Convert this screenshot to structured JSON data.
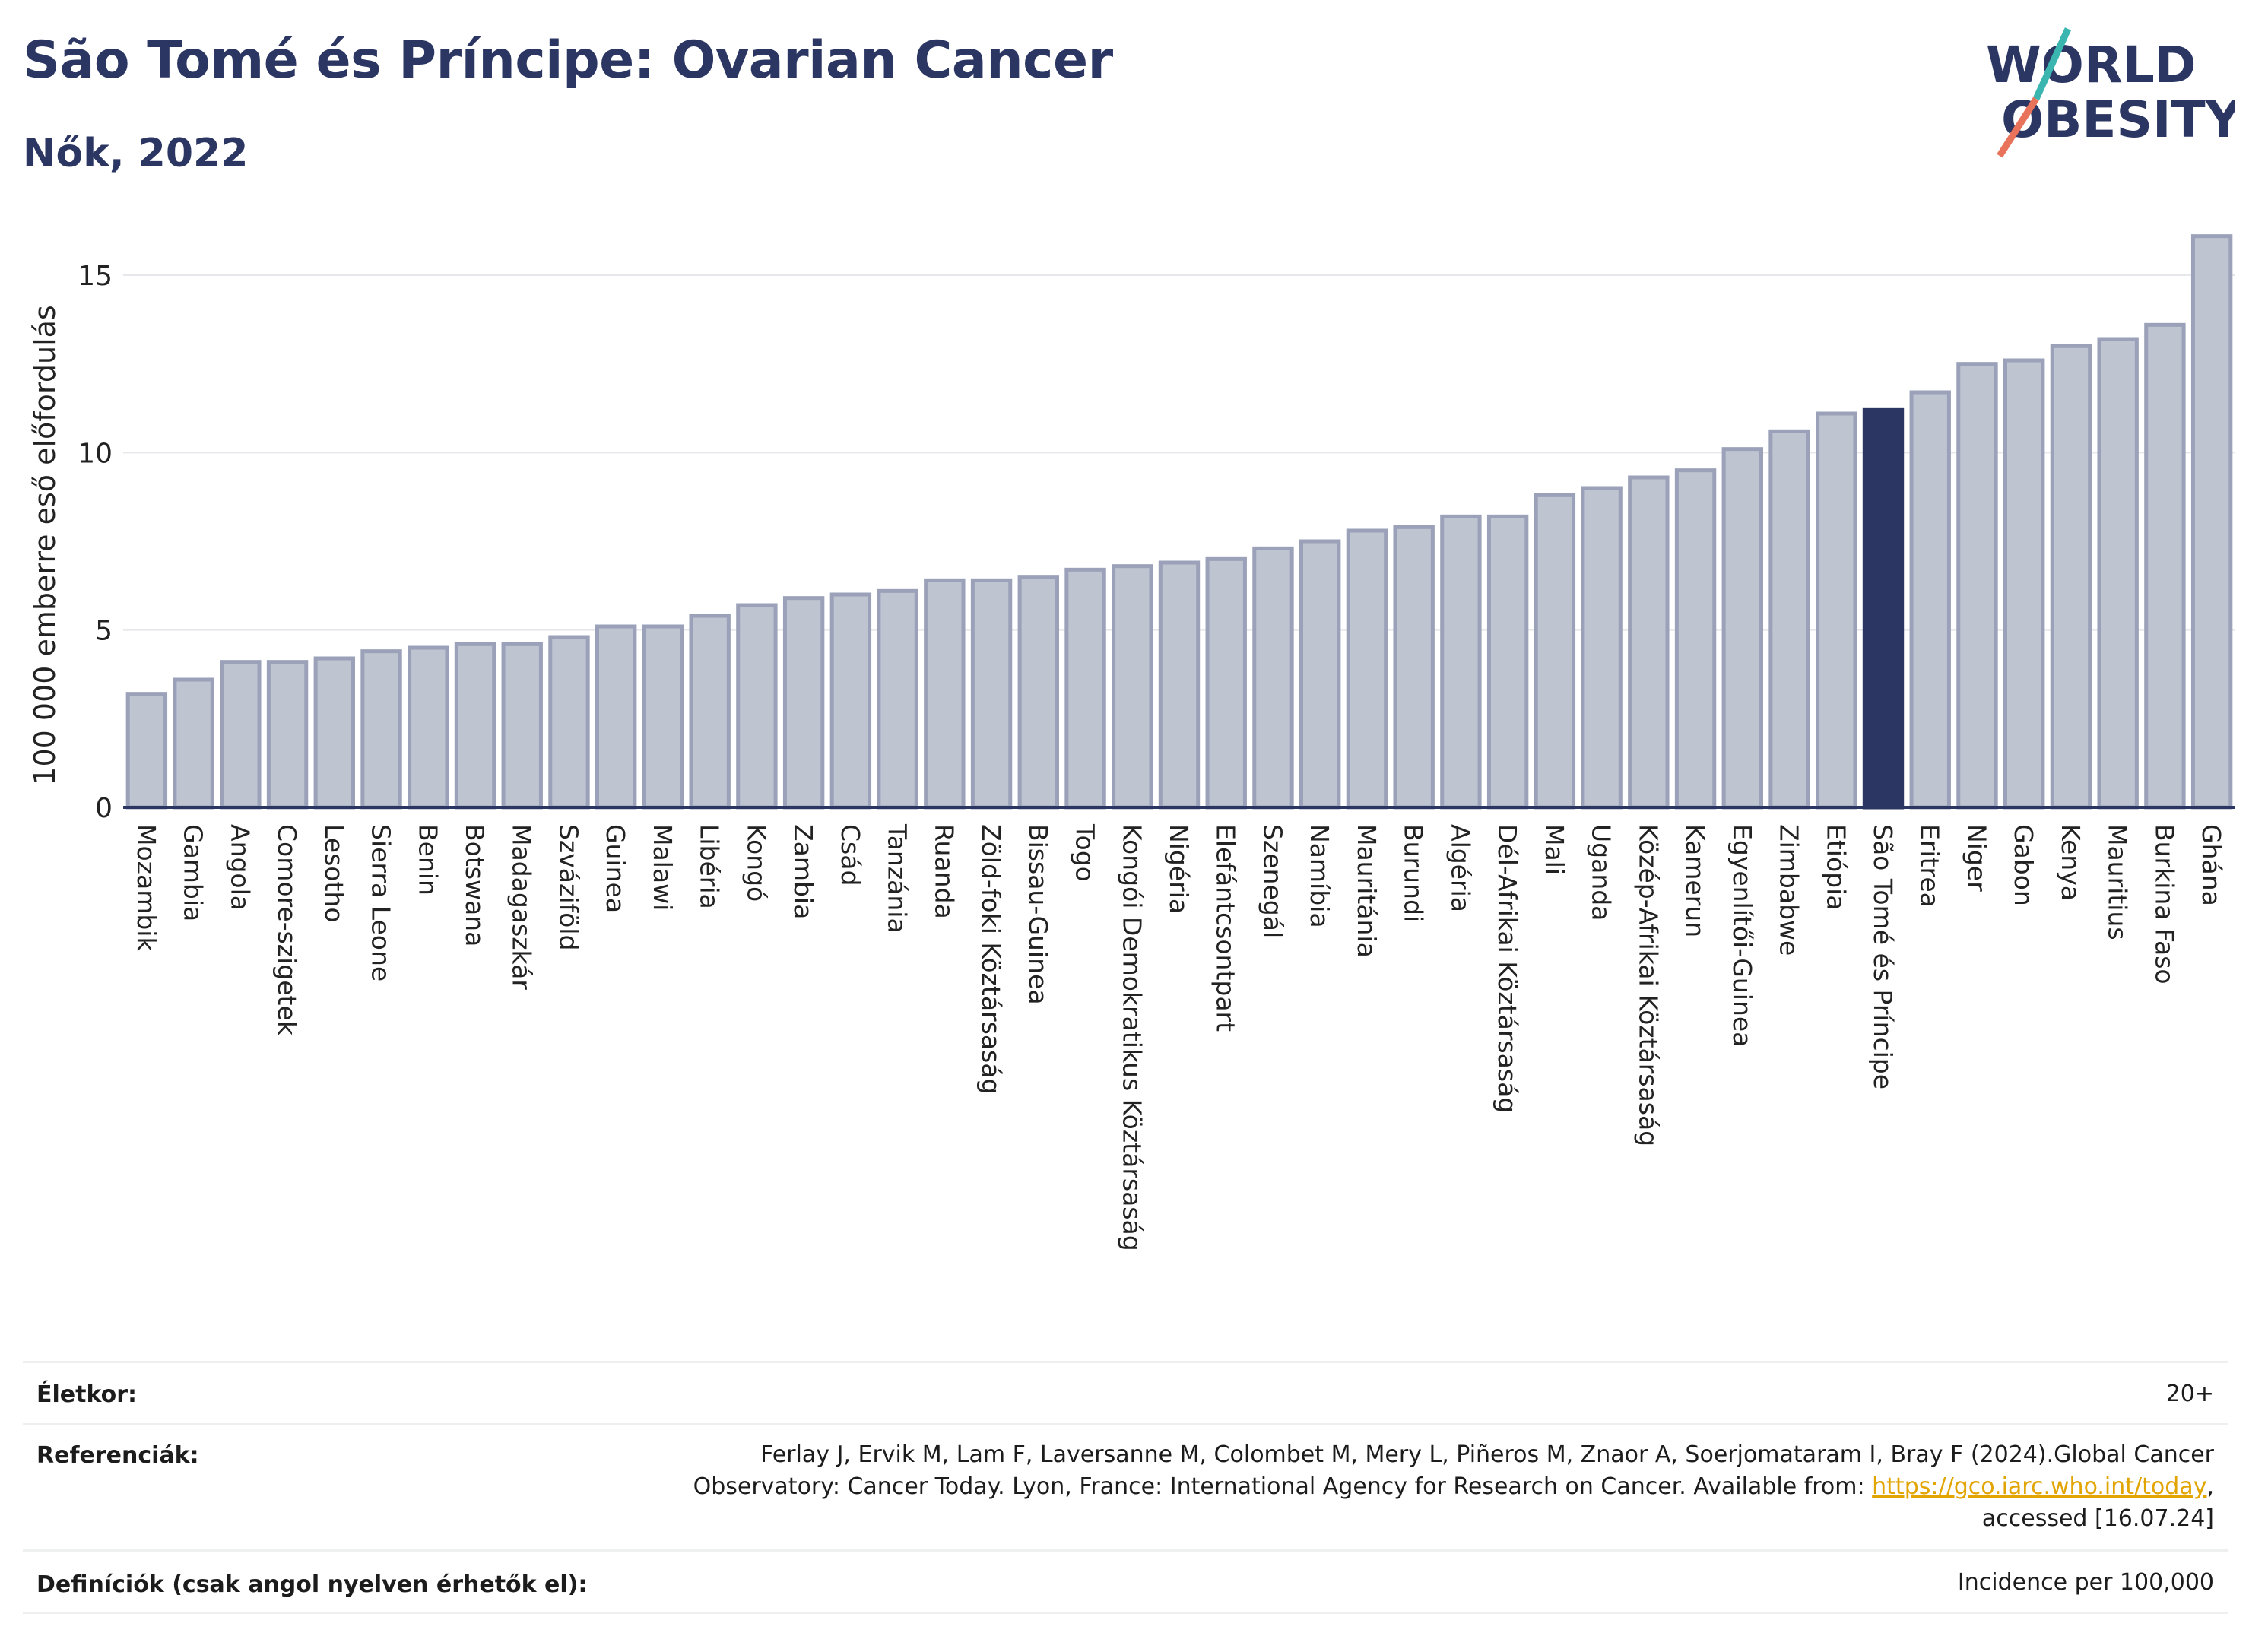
{
  "header": {
    "title": "São Tomé és Príncipe: Ovarian Cancer",
    "subtitle": "Nők, 2022"
  },
  "logo": {
    "line1": "WORLD",
    "line2": "OBESITY"
  },
  "colors": {
    "bar": "#bfc4d1",
    "bar_border": "#9aa1b8",
    "highlight": "#2b3663",
    "title": "#2b3663",
    "logo_teal": "#3ab5b0",
    "logo_coral": "#e8735a",
    "link": "#e2a400"
  },
  "chart_data": {
    "type": "bar",
    "ylabel": "100 000 emberre eső előfordulás",
    "ylim": [
      0,
      16.5
    ],
    "yticks": [
      0,
      5,
      10,
      15
    ],
    "grid": true,
    "highlight_category": "São Tomé és Príncipe",
    "categories": [
      "Mozambik",
      "Gambia",
      "Angola",
      "Comore-szigetek",
      "Lesotho",
      "Sierra Leone",
      "Benin",
      "Botswana",
      "Madagaszkár",
      "Szváziföld",
      "Guinea",
      "Malawi",
      "Libéria",
      "Kongó",
      "Zambia",
      "Csád",
      "Tanzánia",
      "Ruanda",
      "Zöld-foki Köztársaság",
      "Bissau-Guinea",
      "Togo",
      "Kongói Demokratikus Köztársaság",
      "Nigéria",
      "Elefántcsontpart",
      "Szenegál",
      "Namíbia",
      "Mauritánia",
      "Burundi",
      "Algéria",
      "Dél-Afrikai Köztársaság",
      "Mali",
      "Uganda",
      "Közép-Afrikai Köztársaság",
      "Kamerun",
      "Egyenlítői-Guinea",
      "Zimbabwe",
      "Etiópia",
      "São Tomé és Príncipe",
      "Eritrea",
      "Niger",
      "Gabon",
      "Kenya",
      "Mauritius",
      "Burkina Faso",
      "Ghána"
    ],
    "values": [
      3.2,
      3.6,
      4.1,
      4.1,
      4.2,
      4.4,
      4.5,
      4.6,
      4.6,
      4.8,
      5.1,
      5.1,
      5.4,
      5.7,
      5.9,
      6.0,
      6.1,
      6.4,
      6.4,
      6.5,
      6.7,
      6.8,
      6.9,
      7.0,
      7.3,
      7.5,
      7.8,
      7.9,
      8.2,
      8.2,
      8.8,
      9.0,
      9.3,
      9.5,
      10.1,
      10.6,
      11.1,
      11.2,
      11.7,
      12.5,
      12.6,
      13.0,
      13.2,
      13.6,
      16.1
    ]
  },
  "info": {
    "age_label": "Életkor:",
    "age_value": "20+",
    "refs_label": "Referenciák:",
    "refs_line1": "Ferlay J, Ervik M, Lam F, Laversanne M, Colombet M, Mery L, Piñeros M, Znaor A, Soerjomataram I, Bray F (2024).Global Cancer",
    "refs_line2_pre": "Observatory: Cancer Today. Lyon, France: International Agency for Research on Cancer. Available from: ",
    "refs_link": "https://gco.iarc.who.int/today",
    "refs_line2_post": ",",
    "refs_line3": "accessed [16.07.24]",
    "defs_label": "Definíciók (csak angol nyelven érhetők el):",
    "defs_value": "Incidence per 100,000"
  }
}
